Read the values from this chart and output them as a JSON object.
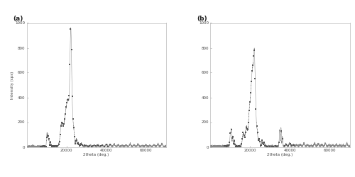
{
  "title_a": "(a)",
  "title_b": "(b)",
  "ylabel": "Intensity (cps)",
  "xlabel": "2theta (deg.)",
  "ylim": [
    0,
    1000
  ],
  "xlim": [
    0,
    70000
  ],
  "xticks": [
    20000,
    40000,
    60000
  ],
  "yticks": [
    0,
    200,
    400,
    600,
    800,
    1000
  ],
  "line_color": "#888888",
  "marker_color": "#555555",
  "bg_color": "#ffffff",
  "font_size": 4,
  "title_font_size": 6.5,
  "label_font_size": 4
}
